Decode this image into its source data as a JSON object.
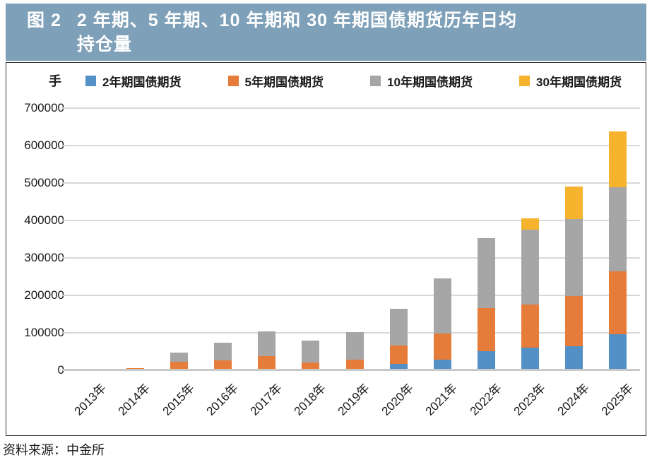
{
  "figure": {
    "label": "图 2",
    "title_line1": "2 年期、5 年期、10 年期和 30 年期国债期货历年日均",
    "title_line2": "持仓量",
    "source": "资料来源：中金所"
  },
  "colors": {
    "header_bg": "#7ea0b8",
    "title_text": "#ffffff",
    "blue": "#5290c6",
    "orange": "#e67c39",
    "gray": "#a6a6a6",
    "yellow": "#f5b32e",
    "gridline": "#d8d8d8",
    "baseline": "#c9c9c9",
    "border": "#2e2e2e"
  },
  "chart_data": {
    "type": "bar",
    "stacked": true,
    "unit_label": "手",
    "title": "2 年期、5 年期、10 年期和 30 年期国债期货历年日均持仓量",
    "xlabel": "",
    "ylabel": "手",
    "ylim": [
      0,
      700000
    ],
    "ytick_step": 100000,
    "yticks": [
      "0",
      "100000",
      "200000",
      "300000",
      "400000",
      "500000",
      "600000",
      "700000"
    ],
    "grid": true,
    "legend_position": "top",
    "categories": [
      "2013年",
      "2014年",
      "2015年",
      "2016年",
      "2017年",
      "2018年",
      "2019年",
      "2020年",
      "2021年",
      "2022年",
      "2023年",
      "2024年",
      "2025年"
    ],
    "series": [
      {
        "name": "2年期国债期货",
        "color_key": "blue",
        "values": [
          0,
          0,
          0,
          0,
          0,
          0,
          4000,
          17000,
          29000,
          51000,
          60000,
          65000,
          96000
        ]
      },
      {
        "name": "5年期国债期货",
        "color_key": "orange",
        "values": [
          3000,
          5000,
          22000,
          27000,
          38000,
          21000,
          24000,
          50000,
          69000,
          116000,
          115000,
          133000,
          169000
        ]
      },
      {
        "name": "10年期国债期货",
        "color_key": "gray",
        "values": [
          0,
          0,
          25000,
          46000,
          66000,
          58000,
          74000,
          97000,
          148000,
          185000,
          201000,
          205000,
          224000
        ]
      },
      {
        "name": "30年期国债期货",
        "color_key": "yellow",
        "values": [
          0,
          0,
          0,
          0,
          0,
          0,
          0,
          0,
          0,
          0,
          30000,
          87000,
          148000
        ]
      }
    ],
    "totals": [
      3000,
      5000,
      47000,
      73000,
      104000,
      79000,
      102000,
      164000,
      246000,
      352000,
      406000,
      490000,
      637000
    ]
  }
}
